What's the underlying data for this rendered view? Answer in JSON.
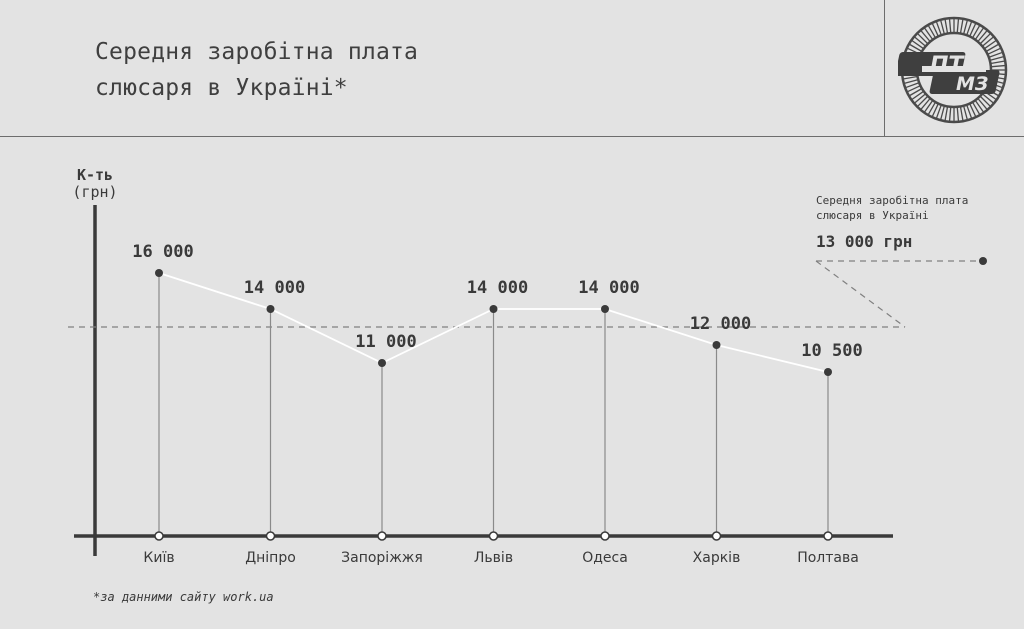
{
  "header": {
    "title_line1": "Середня заробітна плата",
    "title_line2": "слюсаря в Україні*"
  },
  "logo": {
    "text_top": "ПТ",
    "text_bottom": "МЗ",
    "icon": "gear-logo-icon"
  },
  "footnote": "*за данними сайту work.ua",
  "colors": {
    "background": "#e3e3e3",
    "axis": "#3a3a3a",
    "line": "#ffffff",
    "point": "#3a3a3a",
    "dashed": "#808080"
  },
  "chart_data": {
    "type": "line",
    "ylabel_line1": "К-ть",
    "ylabel_line2": "(грн)",
    "categories": [
      "Київ",
      "Дніпро",
      "Запоріжжя",
      "Львів",
      "Одеса",
      "Харків",
      "Полтава"
    ],
    "values": [
      16000,
      14000,
      11000,
      14000,
      14000,
      12000,
      10500
    ],
    "value_labels": [
      "16 000",
      "14 000",
      "11 000",
      "14 000",
      "14 000",
      "12 000",
      "10 500"
    ],
    "reference_line": {
      "value": 13000,
      "label_line1": "Середня заробітна плата",
      "label_line2": "слюсаря в Україні",
      "value_label": "13 000 грн"
    },
    "ylim": [
      0,
      20000
    ],
    "grid": false
  }
}
